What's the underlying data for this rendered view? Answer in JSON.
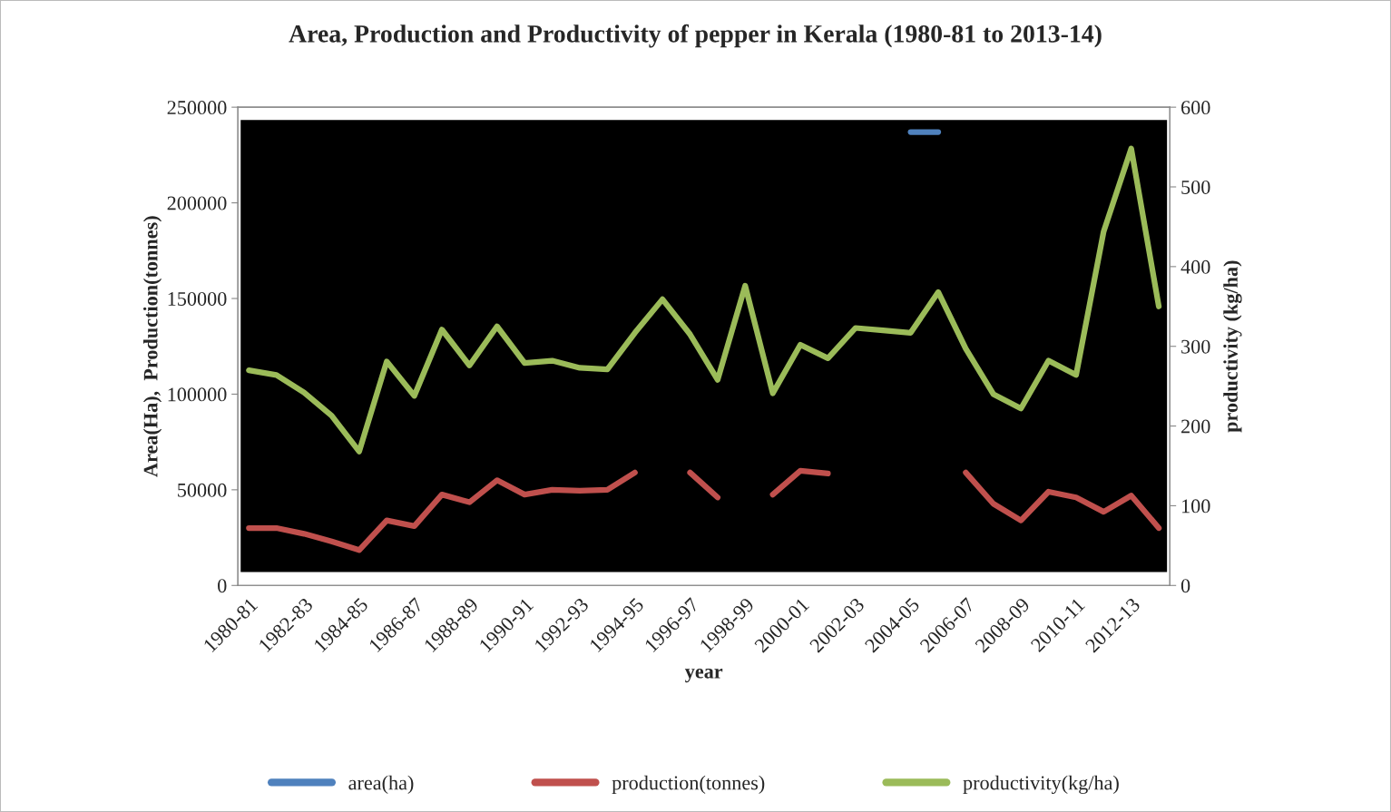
{
  "chart_data": {
    "type": "line",
    "title": "Area, Production and Productivity of pepper in Kerala (1980-81 to 2013-14)",
    "xlabel": "year",
    "ylabel": "Area(Ha),  Production(tonnes)",
    "y2label": "productivity (kg/ha)",
    "categories": [
      "1980-81",
      null,
      "1982-83",
      null,
      "1984-85",
      null,
      "1986-87",
      null,
      "1988-89",
      null,
      "1990-91",
      null,
      "1992-93",
      null,
      "1994-95",
      null,
      "1996-97",
      null,
      "1998-99",
      null,
      "2000-01",
      null,
      "2002-03",
      null,
      "2004-05",
      null,
      "2006-07",
      null,
      "2008-09",
      null,
      "2010-11",
      null,
      "2012-13",
      null
    ],
    "series": [
      {
        "name": "area(ha)",
        "color": "#4f81bd",
        "values": [
          null,
          null,
          null,
          null,
          null,
          null,
          null,
          null,
          null,
          null,
          null,
          null,
          null,
          null,
          null,
          null,
          null,
          null,
          null,
          null,
          null,
          null,
          null,
          null,
          237000,
          237000,
          null,
          null,
          null,
          null,
          null,
          null,
          null,
          null
        ]
      },
      {
        "name": "production(tonnes)",
        "color": "#c0504d",
        "values": [
          30000,
          30000,
          27000,
          23000,
          18500,
          34000,
          31000,
          47500,
          43500,
          55000,
          47500,
          50000,
          49500,
          50000,
          59000,
          null,
          59000,
          46000,
          null,
          47500,
          60000,
          58500,
          null,
          null,
          null,
          null,
          59000,
          42700,
          34000,
          49000,
          46000,
          38500,
          47000,
          30000
        ]
      },
      {
        "name": "productivity(kg/ha)",
        "color": "#9bbb59",
        "axis": "y2",
        "values": [
          270,
          264,
          242,
          213,
          168,
          281,
          238,
          321,
          276,
          325,
          279,
          282,
          273,
          271,
          317,
          359,
          315,
          258,
          376,
          241,
          302,
          285,
          323,
          320,
          317,
          368,
          297,
          240,
          222,
          282,
          264,
          444,
          548,
          350
        ]
      }
    ],
    "ylim": [
      0,
      250000
    ],
    "yticks": [
      0,
      50000,
      100000,
      150000,
      200000,
      250000
    ],
    "y2lim": [
      0,
      600
    ],
    "y2ticks": [
      0,
      100,
      200,
      300,
      400,
      500,
      600
    ],
    "grid": false,
    "legend": "bottom",
    "marker": "none",
    "line_style": "solid"
  }
}
